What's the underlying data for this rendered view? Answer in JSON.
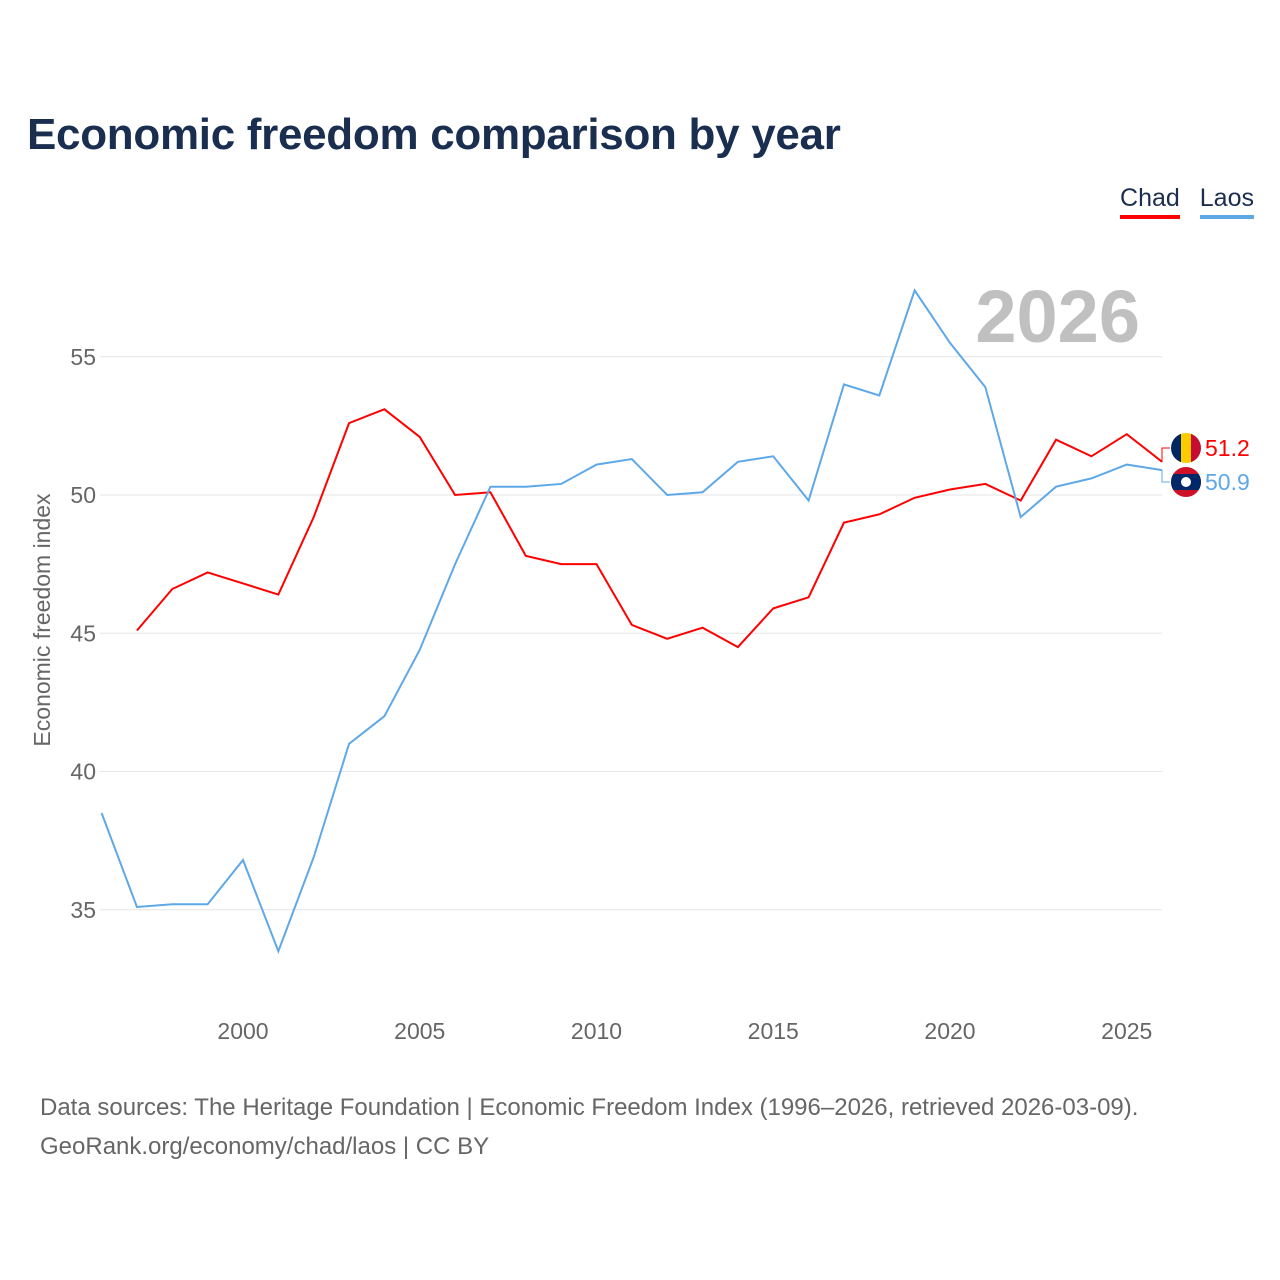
{
  "title": "Economic freedom comparison by year",
  "year_watermark": "2026",
  "source_line1": "Data sources: The Heritage Foundation | Economic Freedom Index (1996–2026, retrieved 2026-03-09).",
  "source_line2": "GeoRank.org/economy/chad/laos | CC BY",
  "chart_data": {
    "type": "line",
    "title": "Economic freedom comparison by year",
    "xlabel": "",
    "ylabel": "Economic freedom index",
    "xlim": [
      1996,
      2026
    ],
    "ylim": [
      31.5,
      59
    ],
    "xticks": [
      2000,
      2005,
      2010,
      2015,
      2020,
      2025
    ],
    "yticks": [
      35,
      40,
      45,
      50,
      55
    ],
    "grid": true,
    "legend": "top-right",
    "series": [
      {
        "name": "Chad",
        "color": "#ff0000",
        "end_label": "51.2",
        "x": [
          1997,
          1998,
          1999,
          2000,
          2001,
          2002,
          2003,
          2004,
          2005,
          2006,
          2007,
          2008,
          2009,
          2010,
          2011,
          2012,
          2013,
          2014,
          2015,
          2016,
          2017,
          2018,
          2019,
          2020,
          2021,
          2022,
          2023,
          2024,
          2025,
          2026
        ],
        "values": [
          45.1,
          46.6,
          47.2,
          46.8,
          46.4,
          49.2,
          52.6,
          53.1,
          52.1,
          50.0,
          50.1,
          47.8,
          47.5,
          47.5,
          45.3,
          44.8,
          45.2,
          44.5,
          45.9,
          46.3,
          49.0,
          49.3,
          49.9,
          50.2,
          50.4,
          49.8,
          52.0,
          51.4,
          52.2,
          51.2
        ]
      },
      {
        "name": "Laos",
        "color": "#5fa8e8",
        "end_label": "50.9",
        "x": [
          1996,
          1997,
          1998,
          1999,
          2000,
          2001,
          2002,
          2003,
          2004,
          2005,
          2006,
          2007,
          2008,
          2009,
          2010,
          2011,
          2012,
          2013,
          2014,
          2015,
          2016,
          2017,
          2018,
          2019,
          2020,
          2021,
          2022,
          2023,
          2024,
          2025,
          2026
        ],
        "values": [
          38.5,
          35.1,
          35.2,
          35.2,
          36.8,
          33.5,
          36.9,
          41.0,
          42.0,
          44.4,
          47.5,
          50.3,
          50.3,
          50.4,
          51.1,
          51.3,
          50.0,
          50.1,
          51.2,
          51.4,
          49.8,
          54.0,
          53.6,
          57.4,
          55.5,
          53.9,
          49.2,
          50.3,
          50.6,
          51.1,
          50.9
        ]
      }
    ]
  }
}
